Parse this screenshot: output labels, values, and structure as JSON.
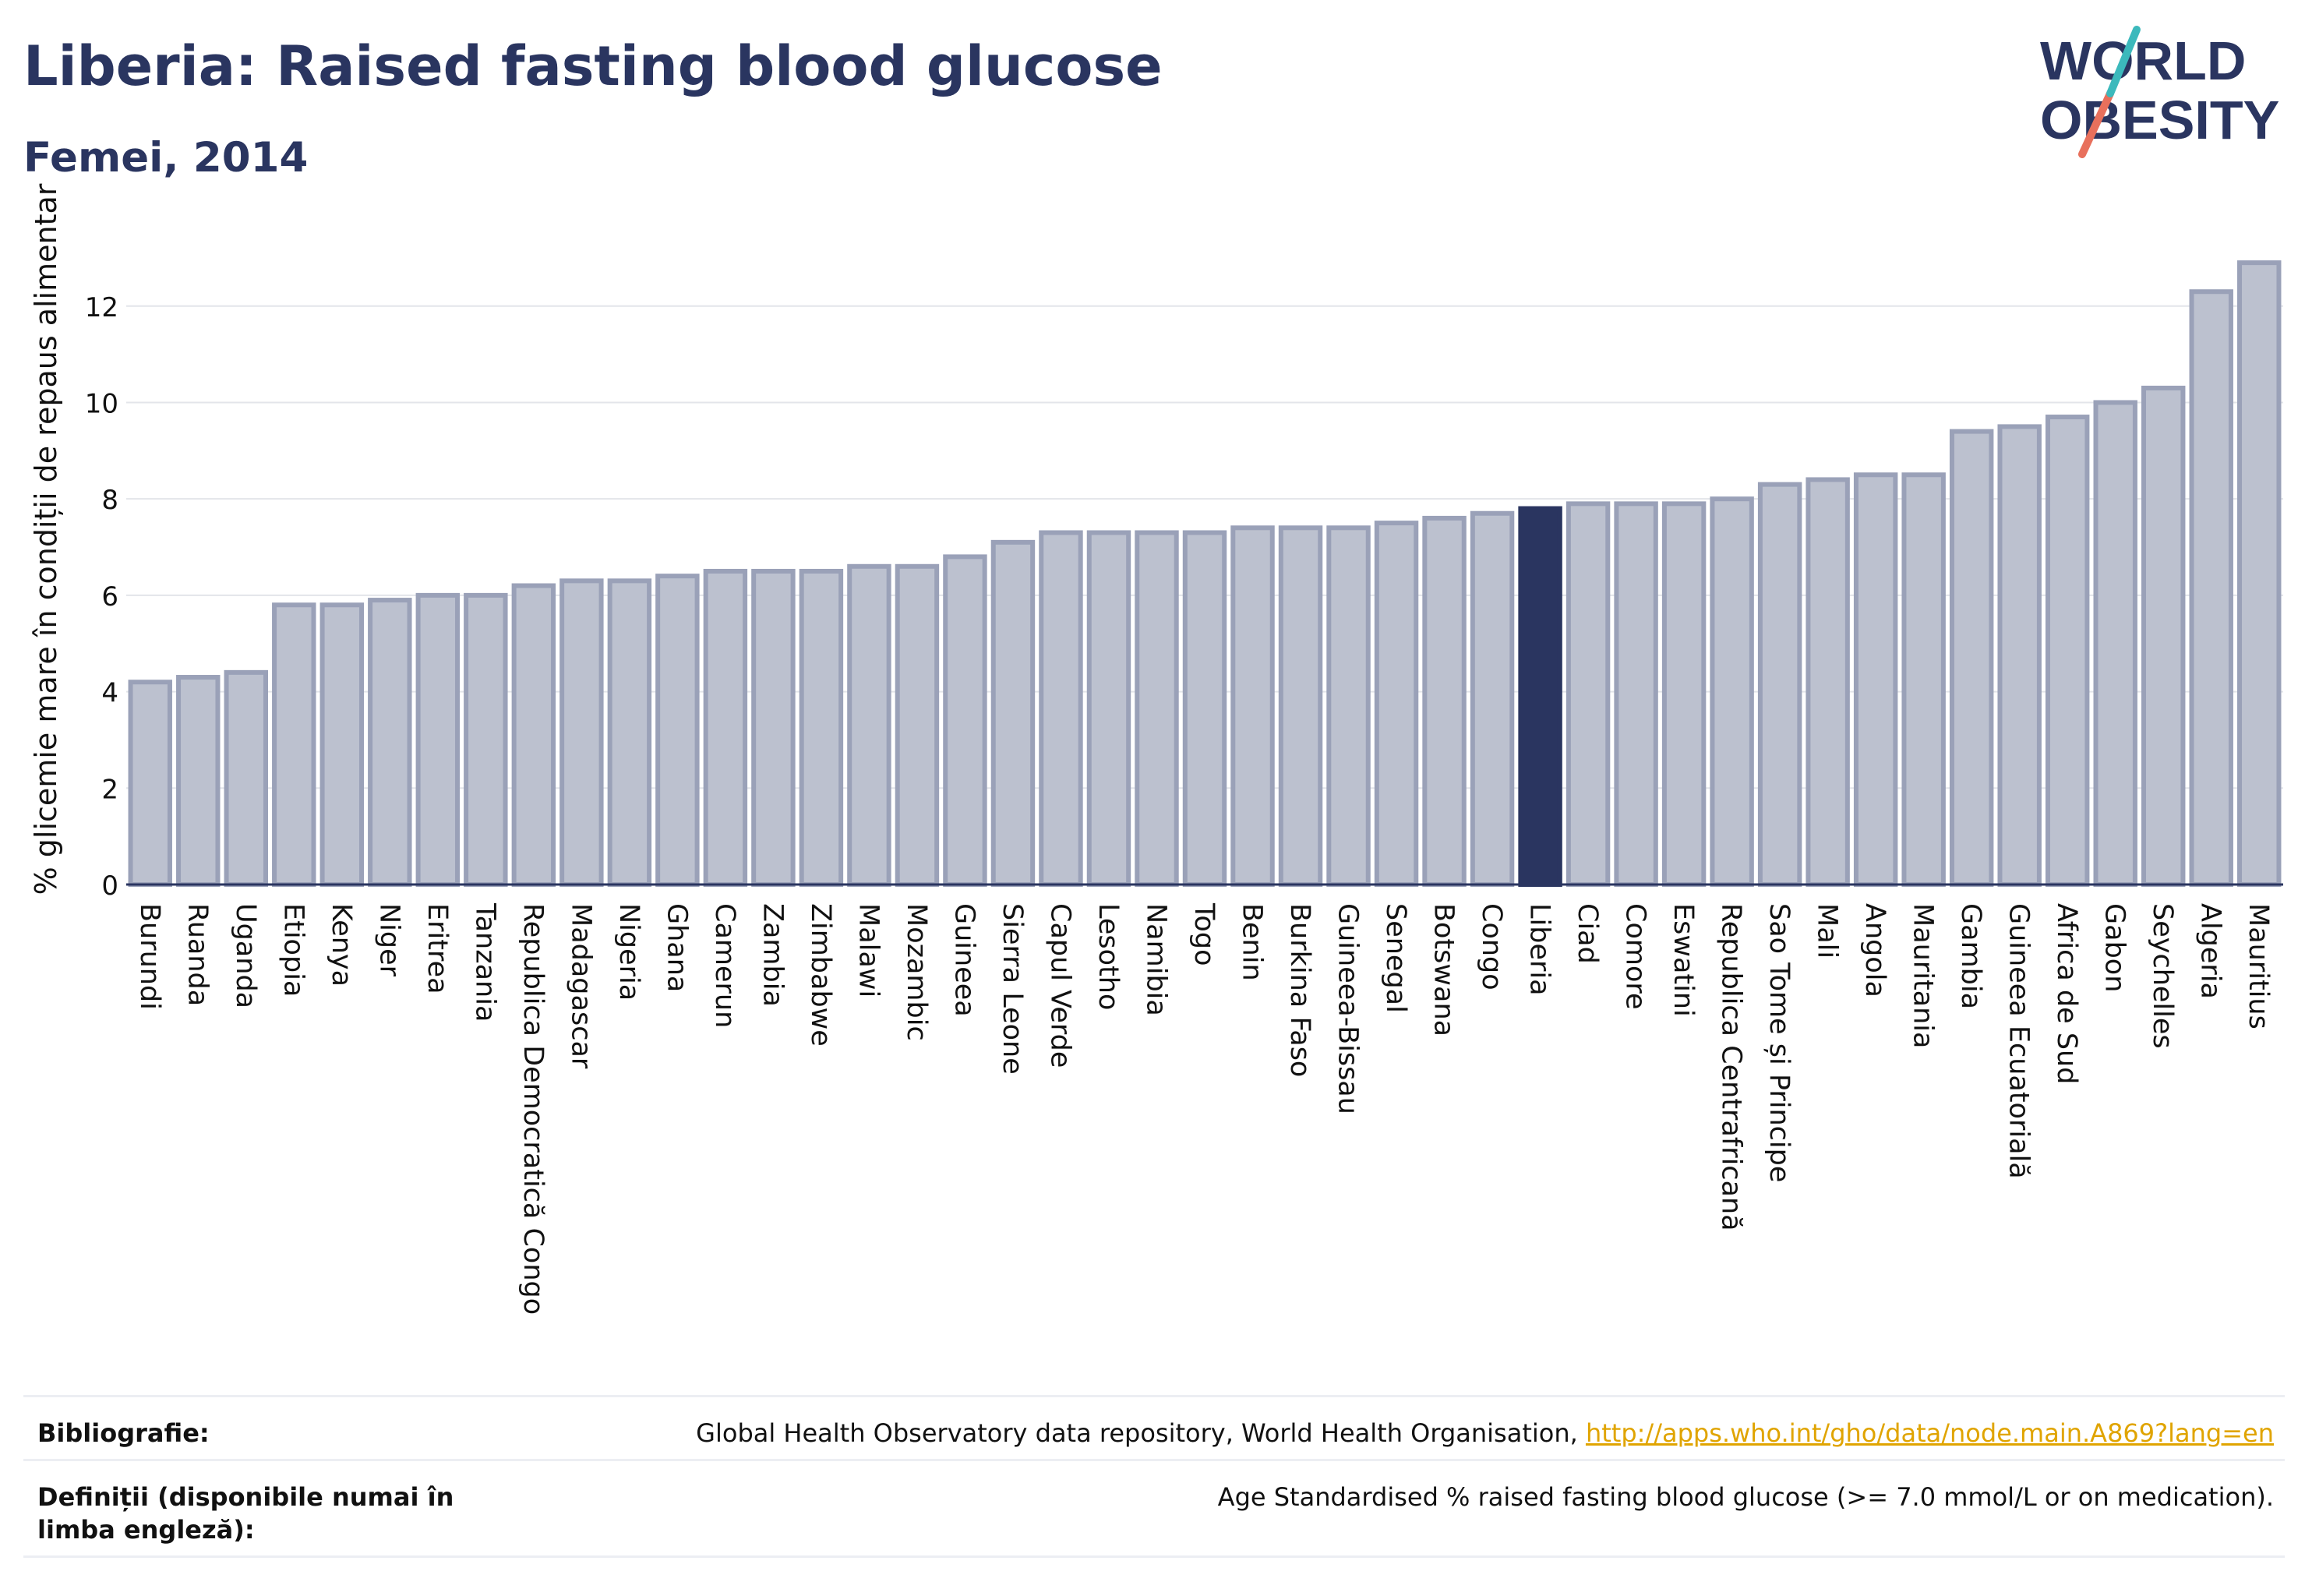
{
  "title": "Liberia: Raised fasting blood glucose",
  "subtitle": "Femei, 2014",
  "logo": {
    "line1": "WORLD",
    "line2": "OBESITY"
  },
  "colors": {
    "highlight": "#2a3560",
    "bar_fill": "#bcc1cf",
    "bar_stroke": "#9aa1b8",
    "link": "#e0a400"
  },
  "chart_data": {
    "type": "bar",
    "ylabel": "% glicemie mare în condiții de repaus alimentar",
    "xlabel": "",
    "ylim": [
      0,
      13.5
    ],
    "yticks": [
      0,
      2,
      4,
      6,
      8,
      10,
      12
    ],
    "grid": true,
    "highlight": "Liberia",
    "categories": [
      "Burundi",
      "Ruanda",
      "Uganda",
      "Etiopia",
      "Kenya",
      "Niger",
      "Eritrea",
      "Tanzania",
      "Republica Democratică Congo",
      "Madagascar",
      "Nigeria",
      "Ghana",
      "Camerun",
      "Zambia",
      "Zimbabwe",
      "Malawi",
      "Mozambic",
      "Guineea",
      "Sierra Leone",
      "Capul Verde",
      "Lesotho",
      "Namibia",
      "Togo",
      "Benin",
      "Burkina Faso",
      "Guineea-Bissau",
      "Senegal",
      "Botswana",
      "Congo",
      "Liberia",
      "Ciad",
      "Comore",
      "Eswatini",
      "Republica Centrafricană",
      "Sao Tome și Principe",
      "Mali",
      "Angola",
      "Mauritania",
      "Gambia",
      "Guineea Ecuatorială",
      "Africa de Sud",
      "Gabon",
      "Seychelles",
      "Algeria",
      "Mauritius"
    ],
    "values": [
      4.2,
      4.3,
      4.4,
      5.8,
      5.8,
      5.9,
      6.0,
      6.0,
      6.2,
      6.3,
      6.3,
      6.4,
      6.5,
      6.5,
      6.5,
      6.6,
      6.6,
      6.8,
      7.1,
      7.3,
      7.3,
      7.3,
      7.3,
      7.4,
      7.4,
      7.4,
      7.5,
      7.6,
      7.7,
      7.8,
      7.9,
      7.9,
      7.9,
      8.0,
      8.3,
      8.4,
      8.5,
      8.5,
      9.4,
      9.5,
      9.7,
      10.0,
      10.3,
      12.3,
      12.9
    ]
  },
  "footer": {
    "bibliography_label": "Bibliografie:",
    "bibliography_text": "Global Health Observatory data repository, World Health Organisation, ",
    "bibliography_link": "http://apps.who.int/gho/data/node.main.A869?lang=en",
    "definitions_label": "Definiții (disponibile numai în limba engleză):",
    "definitions_text": "Age Standardised % raised fasting blood glucose (>= 7.0 mmol/L or on medication)."
  }
}
